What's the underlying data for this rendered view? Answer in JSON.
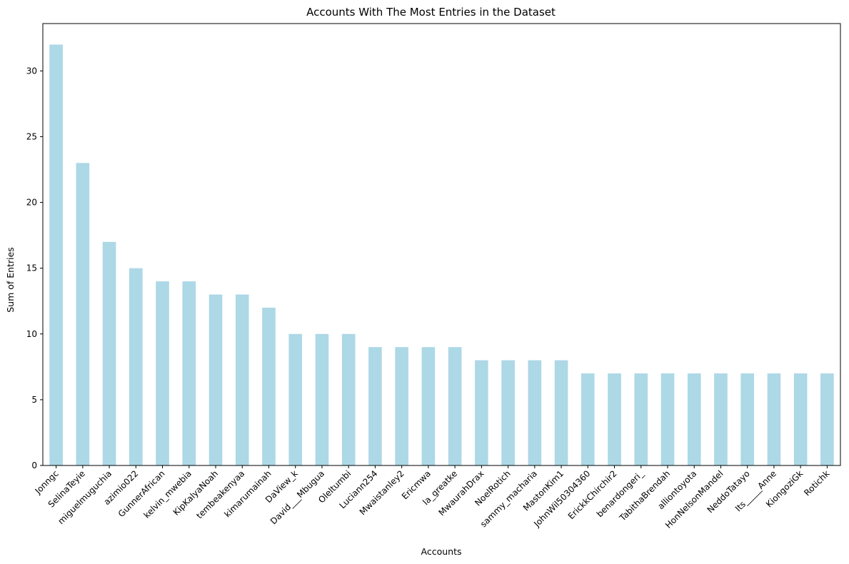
{
  "chart_data": {
    "type": "bar",
    "title": "Accounts With The Most Entries in the Dataset",
    "xlabel": "Accounts",
    "ylabel": "Sum of Entries",
    "ylim": [
      0,
      33.6
    ],
    "yticks": [
      0,
      5,
      10,
      15,
      20,
      25,
      30
    ],
    "bar_color": "#add8e6",
    "grid": false,
    "categories": [
      "Jonngc",
      "SelinaTeyie",
      "miguelmuguchia",
      "azimio022",
      "GunnerAfrican",
      "kelvin_mwebia",
      "KipKalyaNoah",
      "tembeakenyaa",
      "kimarumainah",
      "DaView_k",
      "David___Mbugua",
      "Oleltumbi",
      "Luciann254",
      "Mwaistanley2",
      "Ericmwa",
      "la_greatke",
      "MwaurahDrax",
      "NoelRotich",
      "sammy_macharia",
      "MastonKim1",
      "JohnWil50304360",
      "ErickkChirchir2",
      "benardongeri_",
      "TabithaBrendah",
      "alliontoyota",
      "HonNelsonMandel",
      "NeddoTatayo",
      "Its_____Anne",
      "KiongoziGk",
      "Rotichk"
    ],
    "values": [
      32,
      23,
      17,
      15,
      14,
      14,
      13,
      13,
      12,
      10,
      10,
      10,
      9,
      9,
      9,
      9,
      8,
      8,
      8,
      8,
      7,
      7,
      7,
      7,
      7,
      7,
      7,
      7,
      7,
      7
    ]
  }
}
